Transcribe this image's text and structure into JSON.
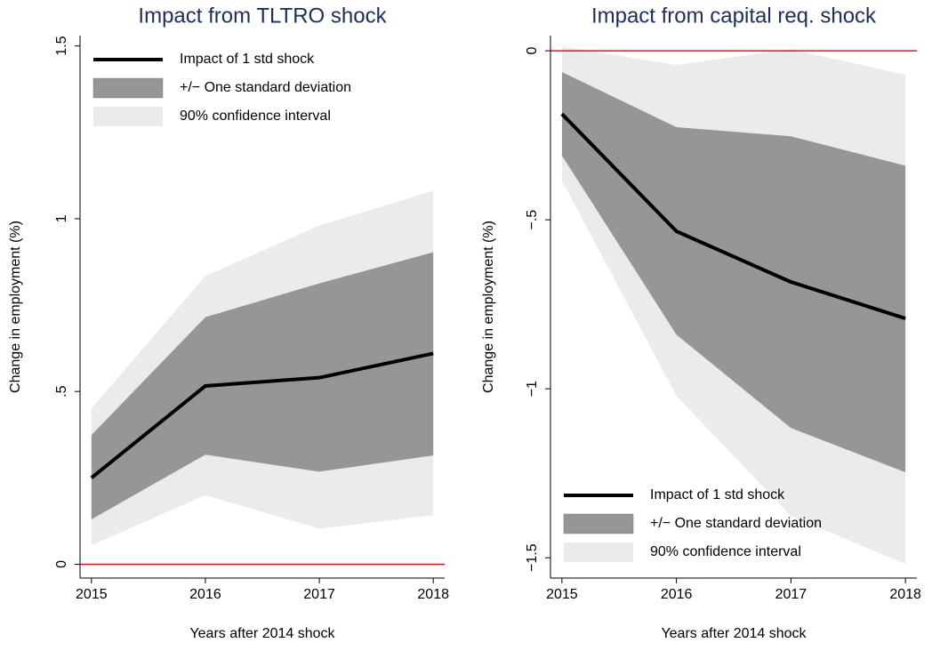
{
  "chart_data": [
    {
      "type": "line-band",
      "title": "Impact from TLTRO shock",
      "xlabel": "Years after 2014 shock",
      "ylabel": "Change in employment (%)",
      "x": [
        2015,
        2016,
        2017,
        2018
      ],
      "xlim": [
        2014.9,
        2018.1
      ],
      "xticks": [
        2015,
        2016,
        2017,
        2018
      ],
      "ylim": [
        -0.04,
        1.53
      ],
      "yticks": [
        0,
        {
          "value": 0.5,
          "label": ".5"
        },
        1,
        1.5
      ],
      "reference_line": {
        "value": 0,
        "color": "#e8141b"
      },
      "legend": "top-left",
      "series": [
        {
          "name": "90% confidence interval",
          "kind": "band",
          "color": "#ebebeb",
          "lower": [
            0.055,
            0.2,
            0.103,
            0.142
          ],
          "upper": [
            0.45,
            0.834,
            0.98,
            1.081
          ]
        },
        {
          "name": "+/− One standard deviation",
          "kind": "band",
          "color": "#969696",
          "lower": [
            0.13,
            0.317,
            0.268,
            0.315
          ],
          "upper": [
            0.374,
            0.715,
            0.813,
            0.903
          ]
        },
        {
          "name": "Impact of 1 std shock",
          "kind": "line",
          "color": "#000000",
          "values": [
            0.25,
            0.516,
            0.54,
            0.61
          ]
        }
      ]
    },
    {
      "type": "line-band",
      "title": "Impact from capital req. shock",
      "xlabel": "Years after 2014 shock",
      "ylabel": "Change in employment (%)",
      "x": [
        2015,
        2016,
        2017,
        2018
      ],
      "xlim": [
        2014.9,
        2018.1
      ],
      "xticks": [
        2015,
        2016,
        2017,
        2018
      ],
      "ylim": [
        -1.56,
        0.045
      ],
      "yticks": [
        0,
        {
          "value": -0.5,
          "label": "−.5"
        },
        {
          "value": -1,
          "label": "−1"
        },
        {
          "value": -1.5,
          "label": "−1.5"
        }
      ],
      "reference_line": {
        "value": 0,
        "color": "#e8141b"
      },
      "legend": "bottom-left",
      "series": [
        {
          "name": "90% confidence interval",
          "kind": "band",
          "color": "#ebebeb",
          "lower": [
            -0.384,
            -1.021,
            -1.376,
            -1.518
          ],
          "upper": [
            0.013,
            -0.042,
            0.005,
            -0.071
          ]
        },
        {
          "name": "+/− One standard deviation",
          "kind": "band",
          "color": "#969696",
          "lower": [
            -0.31,
            -0.84,
            -1.116,
            -1.247
          ],
          "upper": [
            -0.063,
            -0.226,
            -0.253,
            -0.34
          ]
        },
        {
          "name": "Impact of 1 std shock",
          "kind": "line",
          "color": "#000000",
          "values": [
            -0.187,
            -0.534,
            -0.684,
            -0.792
          ]
        }
      ]
    }
  ]
}
